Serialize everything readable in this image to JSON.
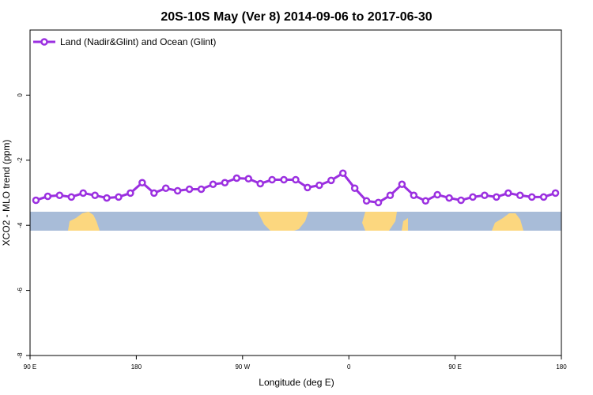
{
  "chart_data": {
    "type": "line",
    "title": "20S-10S May (Ver 8)   2014-09-06 to 2017-06-30",
    "x_label": "Longitude (deg E)",
    "y_label": "XCO2 - MLO trend (ppm)",
    "x": [
      95,
      105,
      115,
      125,
      135,
      145,
      155,
      165,
      175,
      185,
      195,
      205,
      215,
      225,
      235,
      245,
      255,
      265,
      275,
      285,
      295,
      305,
      315,
      325,
      335,
      345,
      355,
      365,
      375,
      385,
      395,
      405,
      415,
      425,
      435,
      445,
      455,
      465,
      475,
      485,
      495,
      505,
      515,
      525,
      535
    ],
    "series": [
      {
        "name": "Land (Nadir&Glint) and Ocean (Glint)",
        "color": "#9b30e0",
        "values": [
          -3.23,
          -3.11,
          -3.08,
          -3.13,
          -3.01,
          -3.08,
          -3.16,
          -3.13,
          -3.01,
          -2.69,
          -3.01,
          -2.86,
          -2.94,
          -2.89,
          -2.89,
          -2.74,
          -2.69,
          -2.55,
          -2.57,
          -2.72,
          -2.6,
          -2.6,
          -2.6,
          -2.84,
          -2.77,
          -2.62,
          -2.4,
          -2.86,
          -3.25,
          -3.3,
          -3.08,
          -2.74,
          -3.08,
          -3.25,
          -3.06,
          -3.16,
          -3.23,
          -3.13,
          -3.08,
          -3.13,
          -3.01,
          -3.08,
          -3.13,
          -3.13,
          -3.01
        ]
      }
    ],
    "xlim": [
      90,
      540
    ],
    "xticks": [
      {
        "value": 90,
        "label": "90 E"
      },
      {
        "value": 180,
        "label": "180"
      },
      {
        "value": 270,
        "label": "90 W"
      },
      {
        "value": 360,
        "label": "0"
      },
      {
        "value": 450,
        "label": "90 E"
      },
      {
        "value": 540,
        "label": "180"
      }
    ],
    "ylim": [
      -8,
      2
    ],
    "yticks": [
      -8,
      -6,
      -4,
      -2,
      0
    ],
    "legend": "top-left"
  }
}
